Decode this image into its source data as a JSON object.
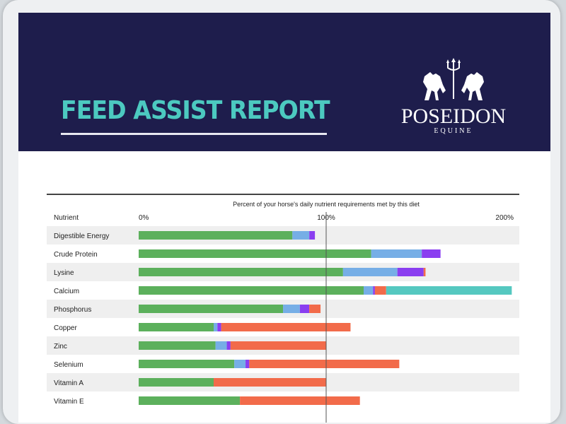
{
  "report": {
    "title": "FEED ASSIST REPORT",
    "brand": "POSEIDON",
    "brand_sub": "EQUINE"
  },
  "colors": {
    "header_bg": "#1e1d4c",
    "title": "#4cc9c0",
    "segments": [
      "#5cb05c",
      "#76aee6",
      "#8a3ef0",
      "#f26b4a",
      "#55c8c0"
    ]
  },
  "chart_data": {
    "type": "bar",
    "orientation": "horizontal",
    "stacked": true,
    "title": "Percent of your horse's daily nutrient requirements met by this diet",
    "category_header": "Nutrient",
    "xlim": [
      0,
      200
    ],
    "ticks": [
      {
        "value": 0,
        "label": "0%"
      },
      {
        "value": 100,
        "label": "100%"
      },
      {
        "value": 200,
        "label": "200%"
      }
    ],
    "reference_line": 100,
    "categories": [
      "Digestible Energy",
      "Crude Protein",
      "Lysine",
      "Calcium",
      "Phosphorus",
      "Copper",
      "Zinc",
      "Selenium",
      "Vitamin A",
      "Vitamin E"
    ],
    "segments": [
      [
        [
          82,
          0
        ],
        [
          9,
          1
        ],
        [
          3,
          2
        ]
      ],
      [
        [
          124,
          0
        ],
        [
          27,
          1
        ],
        [
          10,
          2
        ]
      ],
      [
        [
          109,
          0
        ],
        [
          29,
          1
        ],
        [
          14,
          2
        ],
        [
          1,
          3
        ]
      ],
      [
        [
          120,
          0
        ],
        [
          5,
          1
        ],
        [
          1,
          2
        ],
        [
          6,
          3
        ],
        [
          67,
          4
        ]
      ],
      [
        [
          77,
          0
        ],
        [
          9,
          1
        ],
        [
          5,
          2
        ],
        [
          6,
          3
        ]
      ],
      [
        [
          40,
          0
        ],
        [
          2,
          1
        ],
        [
          2,
          2
        ],
        [
          69,
          3
        ]
      ],
      [
        [
          41,
          0
        ],
        [
          6,
          1
        ],
        [
          2,
          2
        ],
        [
          51,
          3
        ]
      ],
      [
        [
          51,
          0
        ],
        [
          6,
          1
        ],
        [
          2,
          2
        ],
        [
          80,
          3
        ]
      ],
      [
        [
          40,
          0
        ],
        [
          60,
          3
        ]
      ],
      [
        [
          54,
          0
        ],
        [
          64,
          3
        ]
      ]
    ]
  }
}
